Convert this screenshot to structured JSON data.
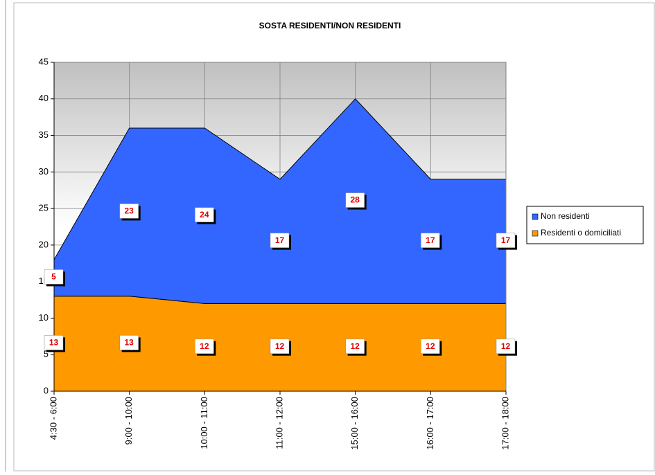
{
  "chart_data": {
    "type": "stacked_area",
    "title": "SOSTA RESIDENTI/NON RESIDENTI",
    "categories": [
      "4:30 - 6:00",
      "9:00 - 10:00",
      "10:00 - 11:00",
      "11:00 - 12:00",
      "15:00 - 16:00",
      "16:00 - 17:00",
      "17:00 - 18:00"
    ],
    "series": [
      {
        "name": "Residenti o domiciliati",
        "color": "#ff9900",
        "values": [
          13,
          13,
          12,
          12,
          12,
          12,
          12
        ]
      },
      {
        "name": "Non residenti",
        "color": "#3366ff",
        "values": [
          5,
          23,
          24,
          17,
          28,
          17,
          17
        ]
      }
    ],
    "ylim": [
      0,
      45
    ],
    "yticks": [
      0,
      5,
      10,
      15,
      20,
      25,
      30,
      35,
      40,
      45
    ],
    "grid": true,
    "legend": "right"
  }
}
